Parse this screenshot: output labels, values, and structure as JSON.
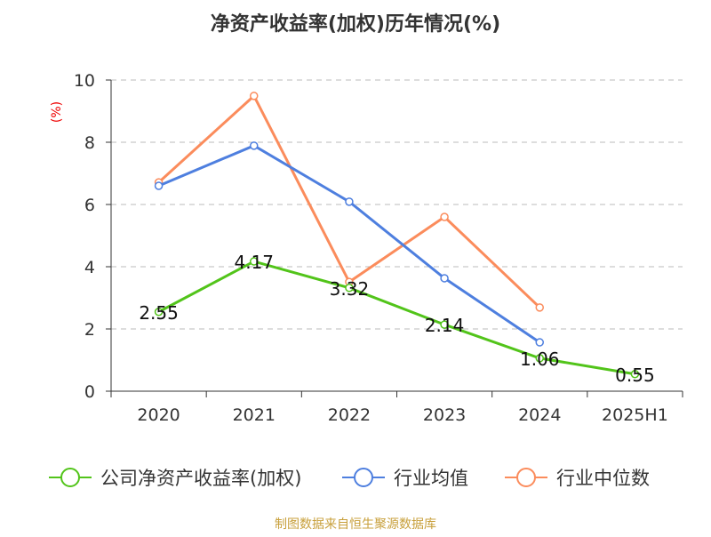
{
  "chart_data": {
    "type": "line",
    "title": "净资产收益率(加权)历年情况(%)",
    "ylabel": "(%)",
    "categories": [
      "2020",
      "2021",
      "2022",
      "2023",
      "2024",
      "2025H1"
    ],
    "ylim": [
      0,
      10
    ],
    "yticks": [
      0,
      2,
      4,
      6,
      8,
      10
    ],
    "grid": true,
    "legend_position": "bottom",
    "series": [
      {
        "name": "公司净资产收益率(加权)",
        "color": "#52c41a",
        "values": [
          2.55,
          4.17,
          3.32,
          2.14,
          1.06,
          0.55
        ],
        "labels": [
          "2.55",
          "4.17",
          "3.32",
          "2.14",
          "1.06",
          "0.55"
        ]
      },
      {
        "name": "行业均值",
        "color": "#4e7fdf",
        "values": [
          6.6,
          7.89,
          6.09,
          3.63,
          1.57,
          null
        ]
      },
      {
        "name": "行业中位数",
        "color": "#fb8c5c",
        "values": [
          6.71,
          9.49,
          3.51,
          5.6,
          2.69,
          null
        ]
      }
    ]
  },
  "source": "制图数据来自恒生聚源数据库"
}
